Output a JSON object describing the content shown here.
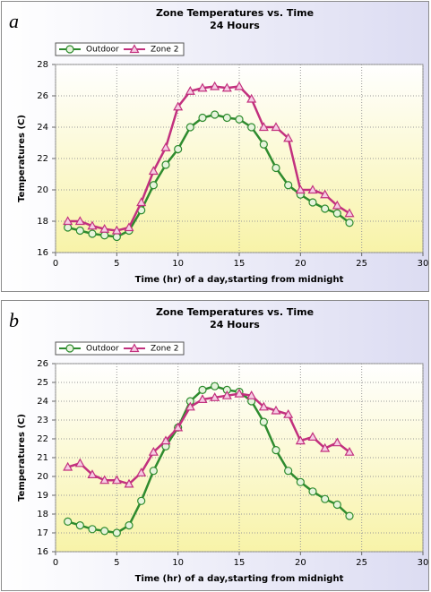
{
  "chart_data": [
    {
      "type": "line",
      "label": "a",
      "title": "Zone Temperatures vs. Time",
      "subtitle": "24 Hours",
      "x_label": "Time (hr) of a day,starting from midnight",
      "y_label": "Temperatures (C)",
      "x": [
        1,
        2,
        3,
        4,
        5,
        6,
        7,
        8,
        9,
        10,
        11,
        12,
        13,
        14,
        15,
        16,
        17,
        18,
        19,
        20,
        21,
        22,
        23,
        24
      ],
      "series": [
        {
          "name": "Outdoor",
          "color": "#2e8b2e",
          "marker": "circle",
          "values": [
            17.6,
            17.4,
            17.2,
            17.1,
            17.0,
            17.4,
            18.7,
            20.3,
            21.6,
            22.6,
            24.0,
            24.6,
            24.8,
            24.6,
            24.5,
            24.0,
            22.9,
            21.4,
            20.3,
            19.7,
            19.2,
            18.8,
            18.5,
            17.9
          ]
        },
        {
          "name": "Zone 2",
          "color": "#c2307e",
          "marker": "triangle",
          "values": [
            18.0,
            18.0,
            17.7,
            17.5,
            17.4,
            17.6,
            19.2,
            21.2,
            22.7,
            25.3,
            26.3,
            26.5,
            26.6,
            26.5,
            26.6,
            25.8,
            24.0,
            24.0,
            23.3,
            20.0,
            20.0,
            19.7,
            19.0,
            18.5
          ]
        }
      ],
      "xlim": [
        0,
        30
      ],
      "xticks": [
        0,
        5,
        10,
        15,
        20,
        25,
        30
      ],
      "ylim": [
        16,
        28
      ],
      "yticks": [
        16,
        18,
        20,
        22,
        24,
        26,
        28
      ],
      "grid": true,
      "legend": "top-left"
    },
    {
      "type": "line",
      "label": "b",
      "title": "Zone Temperatures vs. Time",
      "subtitle": "24 Hours",
      "x_label": "Time (hr) of a day,starting from midnight",
      "y_label": "Temperatures (C)",
      "x": [
        1,
        2,
        3,
        4,
        5,
        6,
        7,
        8,
        9,
        10,
        11,
        12,
        13,
        14,
        15,
        16,
        17,
        18,
        19,
        20,
        21,
        22,
        23,
        24
      ],
      "series": [
        {
          "name": "Outdoor",
          "color": "#2e8b2e",
          "marker": "circle",
          "values": [
            17.6,
            17.4,
            17.2,
            17.1,
            17.0,
            17.4,
            18.7,
            20.3,
            21.6,
            22.6,
            24.0,
            24.6,
            24.8,
            24.6,
            24.5,
            24.0,
            22.9,
            21.4,
            20.3,
            19.7,
            19.2,
            18.8,
            18.5,
            17.9
          ]
        },
        {
          "name": "Zone 2",
          "color": "#c2307e",
          "marker": "triangle",
          "values": [
            20.5,
            20.7,
            20.1,
            19.8,
            19.8,
            19.6,
            20.2,
            21.3,
            21.9,
            22.6,
            23.7,
            24.1,
            24.2,
            24.3,
            24.4,
            24.3,
            23.7,
            23.5,
            23.3,
            21.9,
            22.1,
            21.5,
            21.8,
            21.3
          ]
        }
      ],
      "xlim": [
        0,
        30
      ],
      "xticks": [
        0,
        5,
        10,
        15,
        20,
        25,
        30
      ],
      "ylim": [
        16,
        26
      ],
      "yticks": [
        16,
        17,
        18,
        19,
        20,
        21,
        22,
        23,
        24,
        25,
        26
      ],
      "grid": true,
      "legend": "top-left"
    }
  ]
}
